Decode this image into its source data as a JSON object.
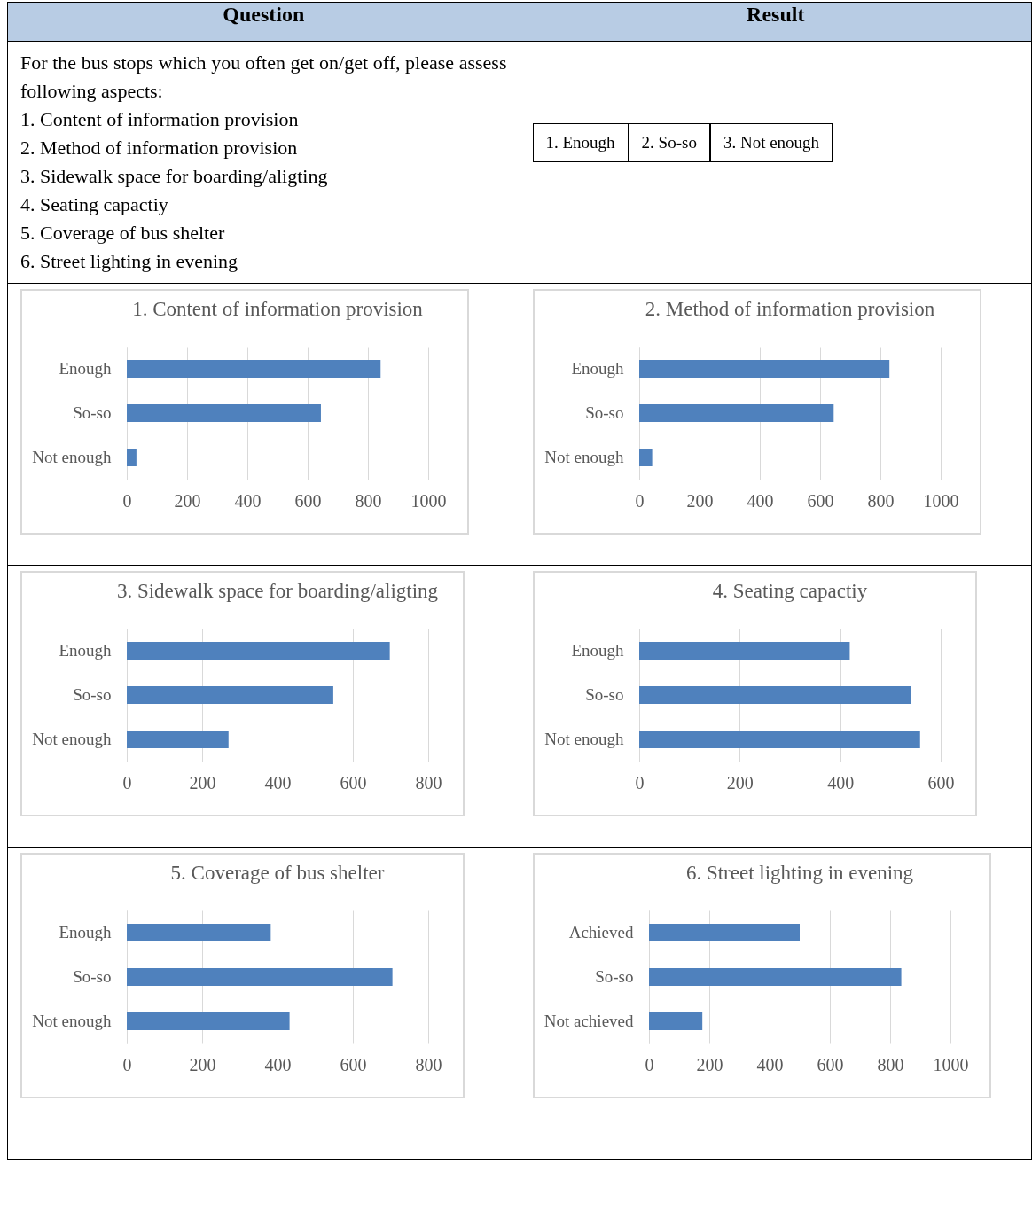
{
  "chart_data": [
    {
      "type": "other",
      "annotations": [
        "Question",
        "Result",
        "For the bus stops which you often get on/get off, please assess following aspects:",
        "1. Content of information provision",
        "2. Method of information provision",
        "3. Sidewalk space for boarding/aligting",
        "4. Seating capactiy",
        "5. Coverage of bus shelter",
        "6. Street lighting in evening",
        "1. Enough",
        "2. So-so",
        "3. Not enough"
      ]
    },
    {
      "type": "bar",
      "orientation": "horizontal",
      "title": "1. Content of information provision",
      "categories": [
        "Enough",
        "So-so",
        "Not enough"
      ],
      "values": [
        842,
        644,
        32
      ],
      "color": "#4f81bd",
      "xlim": [
        0,
        1000
      ],
      "xticks": [
        0,
        200,
        400,
        600,
        800,
        1000
      ],
      "grid": "x"
    },
    {
      "type": "bar",
      "orientation": "horizontal",
      "title": "2. Method of information provision",
      "categories": [
        "Enough",
        "So-so",
        "Not enough"
      ],
      "values": [
        830,
        645,
        43
      ],
      "color": "#4f81bd",
      "xlim": [
        0,
        1000
      ],
      "xticks": [
        0,
        200,
        400,
        600,
        800,
        1000
      ],
      "grid": "x"
    },
    {
      "type": "bar",
      "orientation": "horizontal",
      "title": "3. Sidewalk space for boarding/aligting",
      "categories": [
        "Enough",
        "So-so",
        "Not enough"
      ],
      "values": [
        698,
        548,
        270
      ],
      "color": "#4f81bd",
      "xlim": [
        0,
        800
      ],
      "xticks": [
        0,
        200,
        400,
        600,
        800
      ],
      "grid": "x"
    },
    {
      "type": "bar",
      "orientation": "horizontal",
      "title": "4. Seating capactiy",
      "categories": [
        "Enough",
        "So-so",
        "Not enough"
      ],
      "values": [
        419,
        540,
        559
      ],
      "color": "#4f81bd",
      "xlim": [
        0,
        600
      ],
      "xticks": [
        0,
        200,
        400,
        600
      ],
      "grid": "x"
    },
    {
      "type": "bar",
      "orientation": "horizontal",
      "title": "5. Coverage of bus shelter",
      "categories": [
        "Enough",
        "So-so",
        "Not enough"
      ],
      "values": [
        382,
        705,
        432
      ],
      "color": "#4f81bd",
      "xlim": [
        0,
        800
      ],
      "xticks": [
        0,
        200,
        400,
        600,
        800
      ],
      "grid": "x"
    },
    {
      "type": "bar",
      "orientation": "horizontal",
      "title": "6. Street lighting in evening",
      "categories": [
        "Achieved",
        "So-so",
        "Not achieved"
      ],
      "values": [
        500,
        837,
        177
      ],
      "color": "#4f81bd",
      "xlim": [
        0,
        1000
      ],
      "xticks": [
        0,
        200,
        400,
        600,
        800,
        1000
      ],
      "grid": "x"
    }
  ]
}
